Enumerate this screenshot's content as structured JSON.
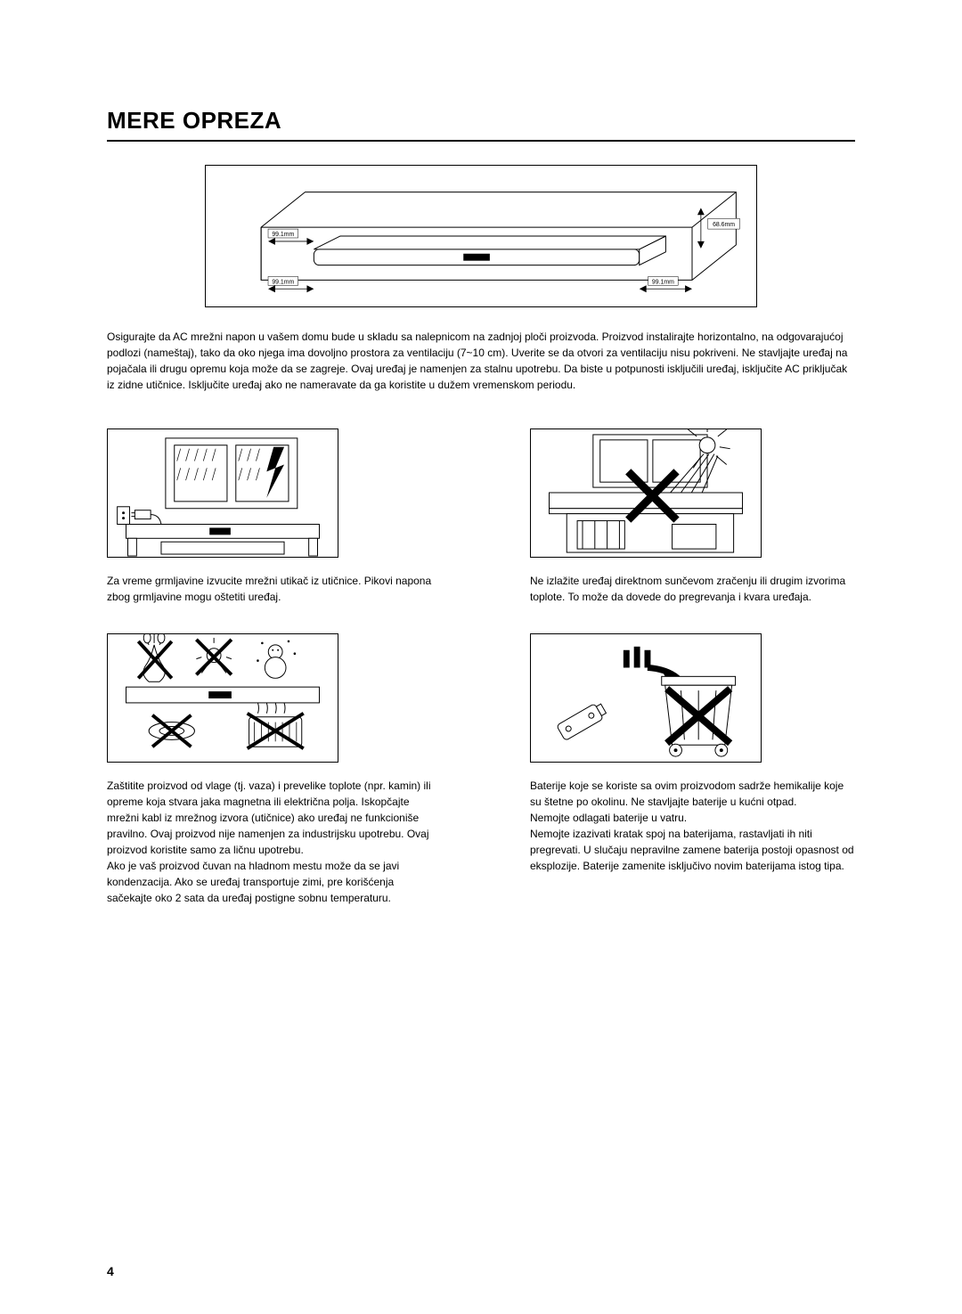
{
  "title": "MERE OPREZA",
  "diagram": {
    "dim_height": "68.6mm",
    "dim_top": "99.1mm",
    "dim_bottom_left": "99.1mm",
    "dim_bottom_right": "99.1mm",
    "stroke": "#000000",
    "fill": "#ffffff",
    "label_fontsize": 6
  },
  "intro": "Osigurajte da AC mrežni napon u vašem domu bude u skladu sa nalepnicom na zadnjoj ploči proizvoda. Proizvod instalirajte horizontalno, na odgovarajućoj podlozi (nameštaj), tako da oko njega ima dovoljno prostora za ventilaciju (7~10 cm). Uverite se da otvori za ventilaciju nisu pokriveni. Ne stavljajte uređaj na pojačala ili drugu opremu koja može da se zagreje. Ovaj uređaj je namenjen za stalnu upotrebu. Da biste u potpunosti isključili uređaj, isključite AC priključak iz zidne utičnice. Isključite uređaj ako ne nameravate da ga koristite u dužem vremenskom periodu.",
  "cells": [
    {
      "desc": "Za vreme grmljavine izvucite mrežni utikač iz utičnice. Pikovi napona zbog grmljavine mogu oštetiti uređaj."
    },
    {
      "desc": "Ne izlažite uređaj direktnom sunčevom zračenju ili drugim izvorima toplote. To može da dovede do pregrevanja i kvara uređaja."
    },
    {
      "desc": "Zaštitite proizvod od vlage (tj. vaza) i prevelike toplote (npr. kamin) ili opreme koja stvara jaka magnetna ili električna polja. Iskopčajte mrežni kabl iz mrežnog izvora (utičnice) ako uređaj ne funkcioniše pravilno. Ovaj proizvod nije namenjen za industrijsku upotrebu. Ovaj proizvod koristite samo za ličnu upotrebu.\nAko je vaš proizvod čuvan na hladnom mestu može da se javi kondenzacija. Ako se uređaj transportuje zimi, pre korišćenja sačekajte oko 2 sata da uređaj postigne sobnu temperaturu."
    },
    {
      "desc": "Baterije koje se koriste sa ovim proizvodom sadrže hemikalije koje su štetne po okolinu. Ne stavljajte baterije u kućni otpad.\nNemojte odlagati baterije u vatru.\nNemojte izazivati kratak spoj na baterijama, rastavljati ih niti pregrevati. U slučaju nepravilne zamene baterija postoji opasnost od eksplozije. Baterije zamenite isključivo novim baterijama istog tipa."
    }
  ],
  "page_number": "4",
  "colors": {
    "background": "#ffffff",
    "text": "#000000",
    "stroke": "#000000"
  }
}
